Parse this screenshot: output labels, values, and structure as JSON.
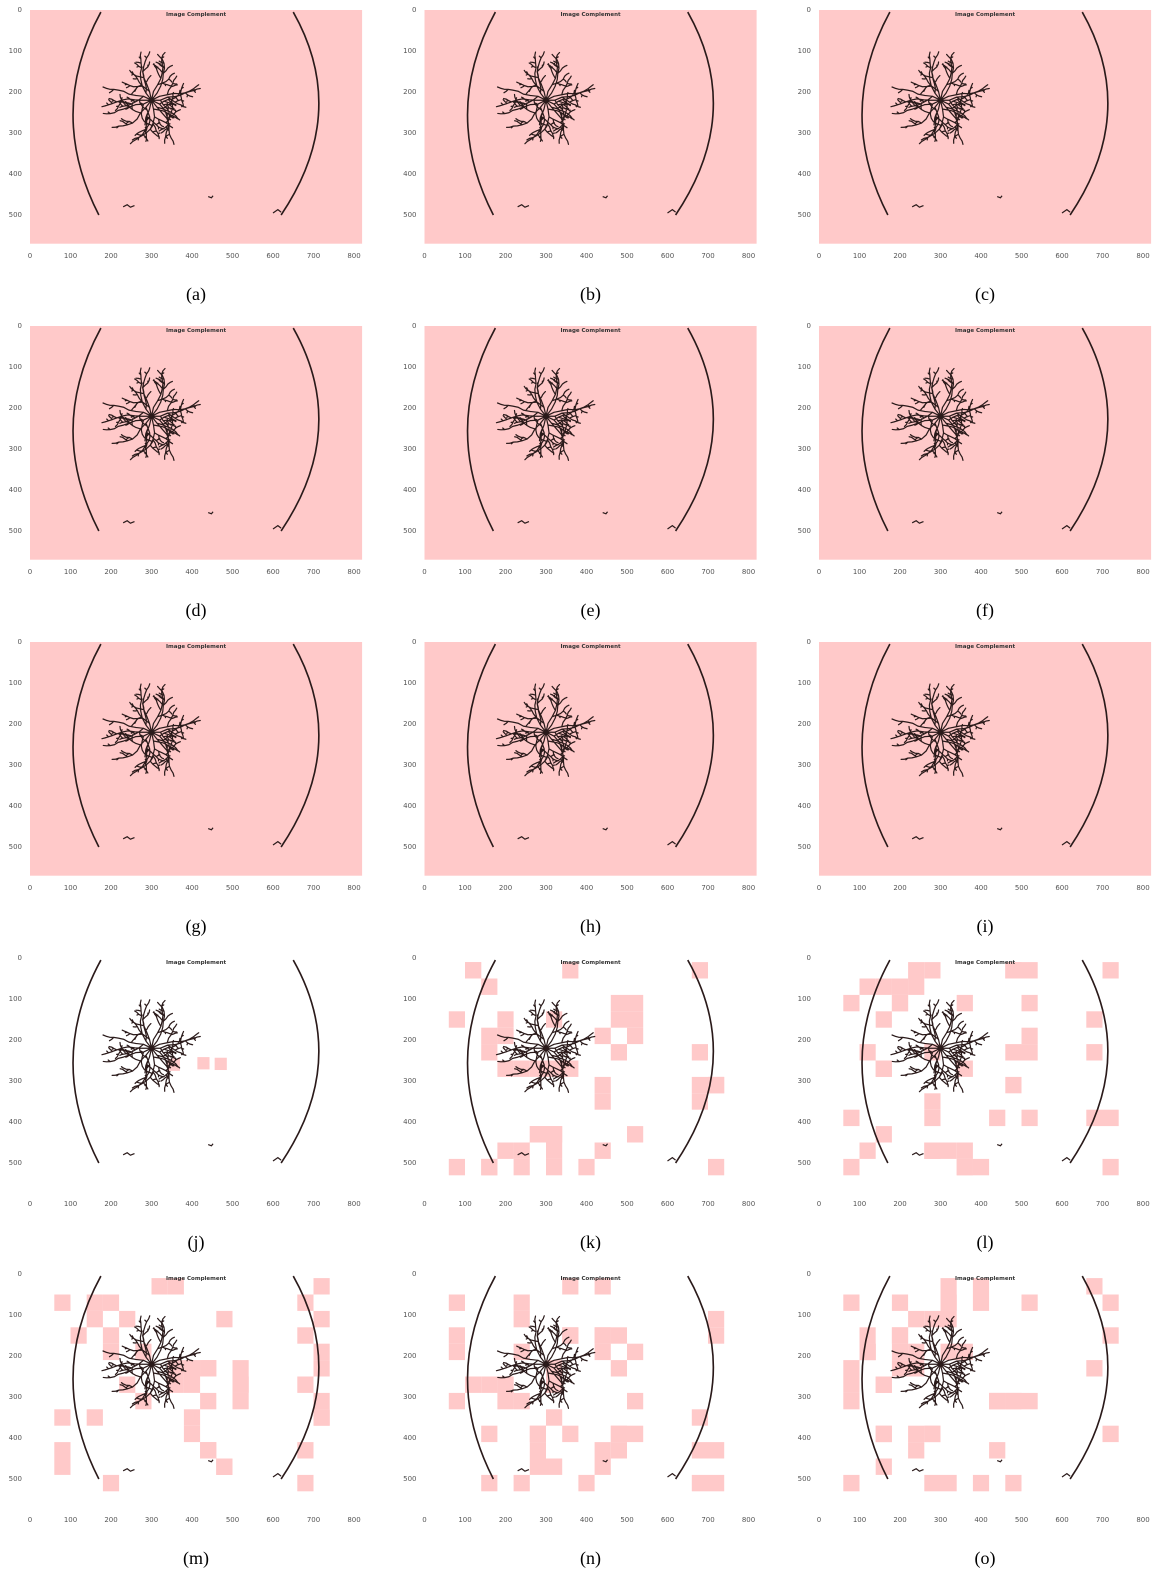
{
  "axes": {
    "xticks": [
      0,
      100,
      200,
      300,
      400,
      500,
      600,
      700,
      800
    ],
    "yticks": [
      0,
      100,
      200,
      300,
      400,
      500
    ]
  },
  "panels": [
    {
      "title": "Image Complement",
      "caption": "(a)",
      "background": "#ffc9c9"
    },
    {
      "title": "Image Complement",
      "caption": "(b)",
      "background": "#ffc9c9"
    },
    {
      "title": "Image Complement",
      "caption": "(c)",
      "background": "#ffc9c9"
    },
    {
      "title": "Image Complement",
      "caption": "(d)",
      "background": "#ffc9c9"
    },
    {
      "title": "Image Complement",
      "caption": "(e)",
      "background": "#ffc9c9"
    },
    {
      "title": "Image Complement",
      "caption": "(f)",
      "background": "#ffc9c9"
    },
    {
      "title": "Image Complement",
      "caption": "(g)",
      "background": "#ffc9c9"
    },
    {
      "title": "Image Complement",
      "caption": "(h)",
      "background": "#ffc9c9"
    },
    {
      "title": "Image Complement",
      "caption": "(i)",
      "background": "#ffc9c9"
    },
    {
      "title": "Image Complement",
      "caption": "(j)",
      "background": "#ffffff",
      "patch_color": "#ffc9c9"
    },
    {
      "title": "Image Complement",
      "caption": "(k)",
      "background": "#ffffff",
      "patch_color": "#ffc9c9"
    },
    {
      "title": "Image Complement",
      "caption": "(l)",
      "background": "#ffffff",
      "patch_color": "#ffc9c9"
    },
    {
      "title": "Image Complement",
      "caption": "(m)",
      "background": "#ffffff",
      "patch_color": "#ffc9c9"
    },
    {
      "title": "Image Complement",
      "caption": "(n)",
      "background": "#ffffff",
      "patch_color": "#ffc9c9"
    },
    {
      "title": "Image Complement",
      "caption": "(o)",
      "background": "#ffffff",
      "patch_color": "#ffc9c9"
    }
  ]
}
